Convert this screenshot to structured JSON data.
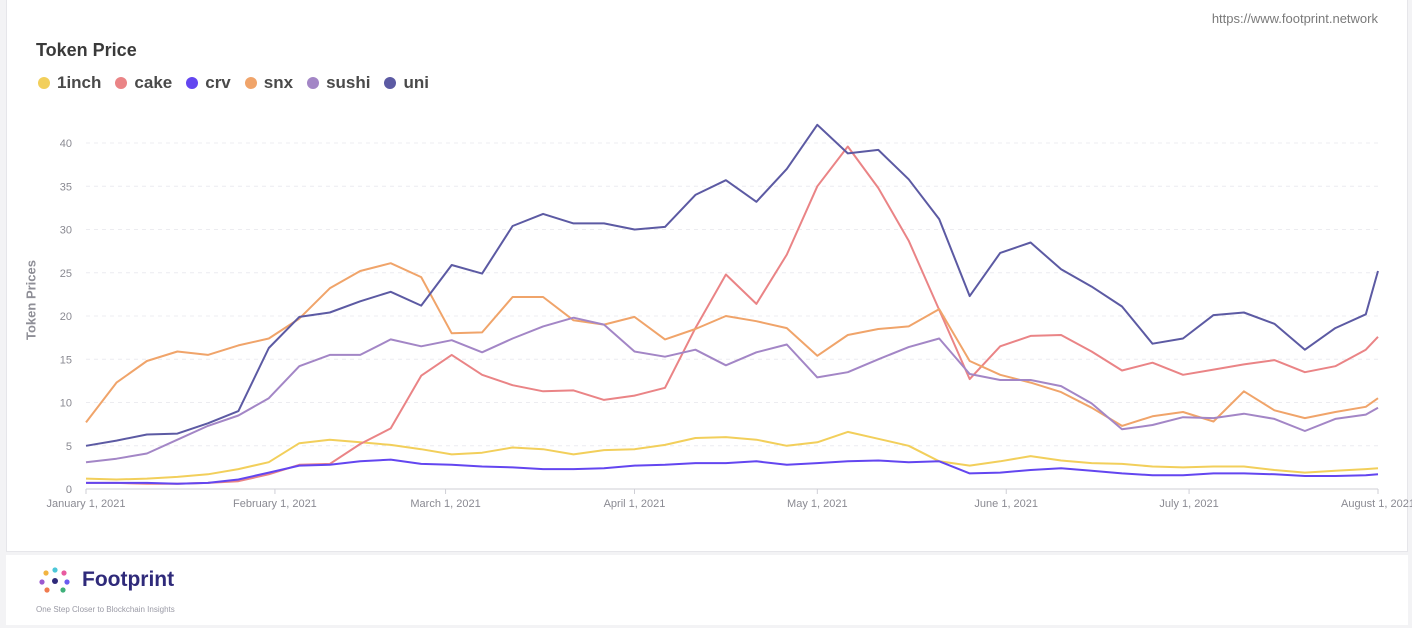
{
  "source_url": "https://www.footprint.network",
  "brand": {
    "name": "Footprint",
    "tagline": "One Step Closer to Blockchain Insights"
  },
  "chart_data": {
    "type": "line",
    "title": "Token Price",
    "ylabel": "Token Prices",
    "xlabel": "",
    "ylim": [
      0,
      40
    ],
    "yticks": [
      0,
      5,
      10,
      15,
      20,
      25,
      30,
      35,
      40
    ],
    "xlim": [
      "2021-01-01",
      "2021-08-01"
    ],
    "xticks": [
      {
        "date": "2021-01-01",
        "label": "January 1, 2021"
      },
      {
        "date": "2021-02-01",
        "label": "February 1, 2021"
      },
      {
        "date": "2021-03-01",
        "label": "March 1, 2021"
      },
      {
        "date": "2021-04-01",
        "label": "April 1, 2021"
      },
      {
        "date": "2021-05-01",
        "label": "May 1, 2021"
      },
      {
        "date": "2021-06-01",
        "label": "June 1, 2021"
      },
      {
        "date": "2021-07-01",
        "label": "July 1, 2021"
      },
      {
        "date": "2021-08-01",
        "label": "August 1, 2021"
      }
    ],
    "grid": true,
    "legend_position": "top-left",
    "x": [
      "2021-01-01",
      "2021-01-06",
      "2021-01-11",
      "2021-01-16",
      "2021-01-21",
      "2021-01-26",
      "2021-01-31",
      "2021-02-05",
      "2021-02-10",
      "2021-02-15",
      "2021-02-20",
      "2021-02-25",
      "2021-03-02",
      "2021-03-07",
      "2021-03-12",
      "2021-03-17",
      "2021-03-22",
      "2021-03-27",
      "2021-04-01",
      "2021-04-06",
      "2021-04-11",
      "2021-04-16",
      "2021-04-21",
      "2021-04-26",
      "2021-05-01",
      "2021-05-06",
      "2021-05-11",
      "2021-05-16",
      "2021-05-21",
      "2021-05-26",
      "2021-05-31",
      "2021-06-05",
      "2021-06-10",
      "2021-06-15",
      "2021-06-20",
      "2021-06-25",
      "2021-06-30",
      "2021-07-05",
      "2021-07-10",
      "2021-07-15",
      "2021-07-20",
      "2021-07-25",
      "2021-07-30",
      "2021-08-01"
    ],
    "series": [
      {
        "name": "1inch",
        "color": "#f2cf5b",
        "values": [
          1.2,
          1.1,
          1.2,
          1.4,
          1.7,
          2.3,
          3.1,
          5.3,
          5.7,
          5.4,
          5.1,
          4.6,
          4.0,
          4.2,
          4.8,
          4.6,
          4.0,
          4.5,
          4.6,
          5.1,
          5.9,
          6.0,
          5.7,
          5.0,
          5.4,
          6.6,
          5.8,
          5.0,
          3.2,
          2.7,
          3.2,
          3.8,
          3.3,
          3.0,
          2.9,
          2.6,
          2.5,
          2.6,
          2.6,
          2.2,
          1.9,
          2.1,
          2.3,
          2.4
        ]
      },
      {
        "name": "cake",
        "color": "#ea8486",
        "values": [
          0.7,
          0.7,
          0.6,
          0.6,
          0.7,
          0.9,
          1.7,
          2.8,
          2.9,
          5.2,
          7.0,
          13.1,
          15.5,
          13.2,
          12.0,
          11.3,
          11.4,
          10.3,
          10.8,
          11.7,
          18.6,
          24.8,
          21.4,
          27.1,
          35.0,
          39.6,
          34.8,
          28.7,
          20.7,
          12.7,
          16.5,
          17.7,
          17.8,
          15.9,
          13.7,
          14.6,
          13.2,
          13.8,
          14.4,
          14.9,
          13.5,
          14.2,
          16.1,
          17.6
        ]
      },
      {
        "name": "crv",
        "color": "#6346f0",
        "values": [
          0.7,
          0.7,
          0.7,
          0.6,
          0.7,
          1.1,
          1.9,
          2.7,
          2.8,
          3.2,
          3.4,
          2.9,
          2.8,
          2.6,
          2.5,
          2.3,
          2.3,
          2.4,
          2.7,
          2.8,
          3.0,
          3.0,
          3.2,
          2.8,
          3.0,
          3.2,
          3.3,
          3.1,
          3.2,
          1.8,
          1.9,
          2.2,
          2.4,
          2.1,
          1.8,
          1.6,
          1.6,
          1.8,
          1.8,
          1.7,
          1.5,
          1.5,
          1.6,
          1.7
        ]
      },
      {
        "name": "snx",
        "color": "#f0a46a",
        "values": [
          7.7,
          12.3,
          14.8,
          15.9,
          15.5,
          16.6,
          17.4,
          19.7,
          23.2,
          25.2,
          26.1,
          24.5,
          18.0,
          18.1,
          22.2,
          22.2,
          19.5,
          19.0,
          19.9,
          17.3,
          18.5,
          20.0,
          19.4,
          18.6,
          15.4,
          17.8,
          18.5,
          18.8,
          20.8,
          14.8,
          13.2,
          12.3,
          11.2,
          9.4,
          7.3,
          8.4,
          8.9,
          7.8,
          11.3,
          9.1,
          8.2,
          8.9,
          9.5,
          10.5
        ]
      },
      {
        "name": "sushi",
        "color": "#a386c6",
        "values": [
          3.1,
          3.5,
          4.1,
          5.7,
          7.3,
          8.5,
          10.5,
          14.2,
          15.5,
          15.5,
          17.3,
          16.5,
          17.2,
          15.8,
          17.4,
          18.8,
          19.8,
          19.0,
          15.9,
          15.3,
          16.1,
          14.3,
          15.8,
          16.7,
          12.9,
          13.5,
          15.0,
          16.4,
          17.4,
          13.3,
          12.6,
          12.6,
          11.9,
          9.9,
          6.9,
          7.4,
          8.3,
          8.2,
          8.7,
          8.1,
          6.7,
          8.1,
          8.6,
          9.4
        ]
      },
      {
        "name": "uni",
        "color": "#5c5aa3",
        "values": [
          5.0,
          5.6,
          6.3,
          6.4,
          7.6,
          9.0,
          16.3,
          19.9,
          20.4,
          21.7,
          22.8,
          21.2,
          25.9,
          24.9,
          30.4,
          31.8,
          30.7,
          30.7,
          30.0,
          30.3,
          34.0,
          35.7,
          33.2,
          37.0,
          42.1,
          38.8,
          39.2,
          35.8,
          31.2,
          22.3,
          27.3,
          28.5,
          25.4,
          23.4,
          21.1,
          16.8,
          17.4,
          20.1,
          20.4,
          19.1,
          16.1,
          18.6,
          20.2,
          25.2
        ]
      }
    ]
  }
}
